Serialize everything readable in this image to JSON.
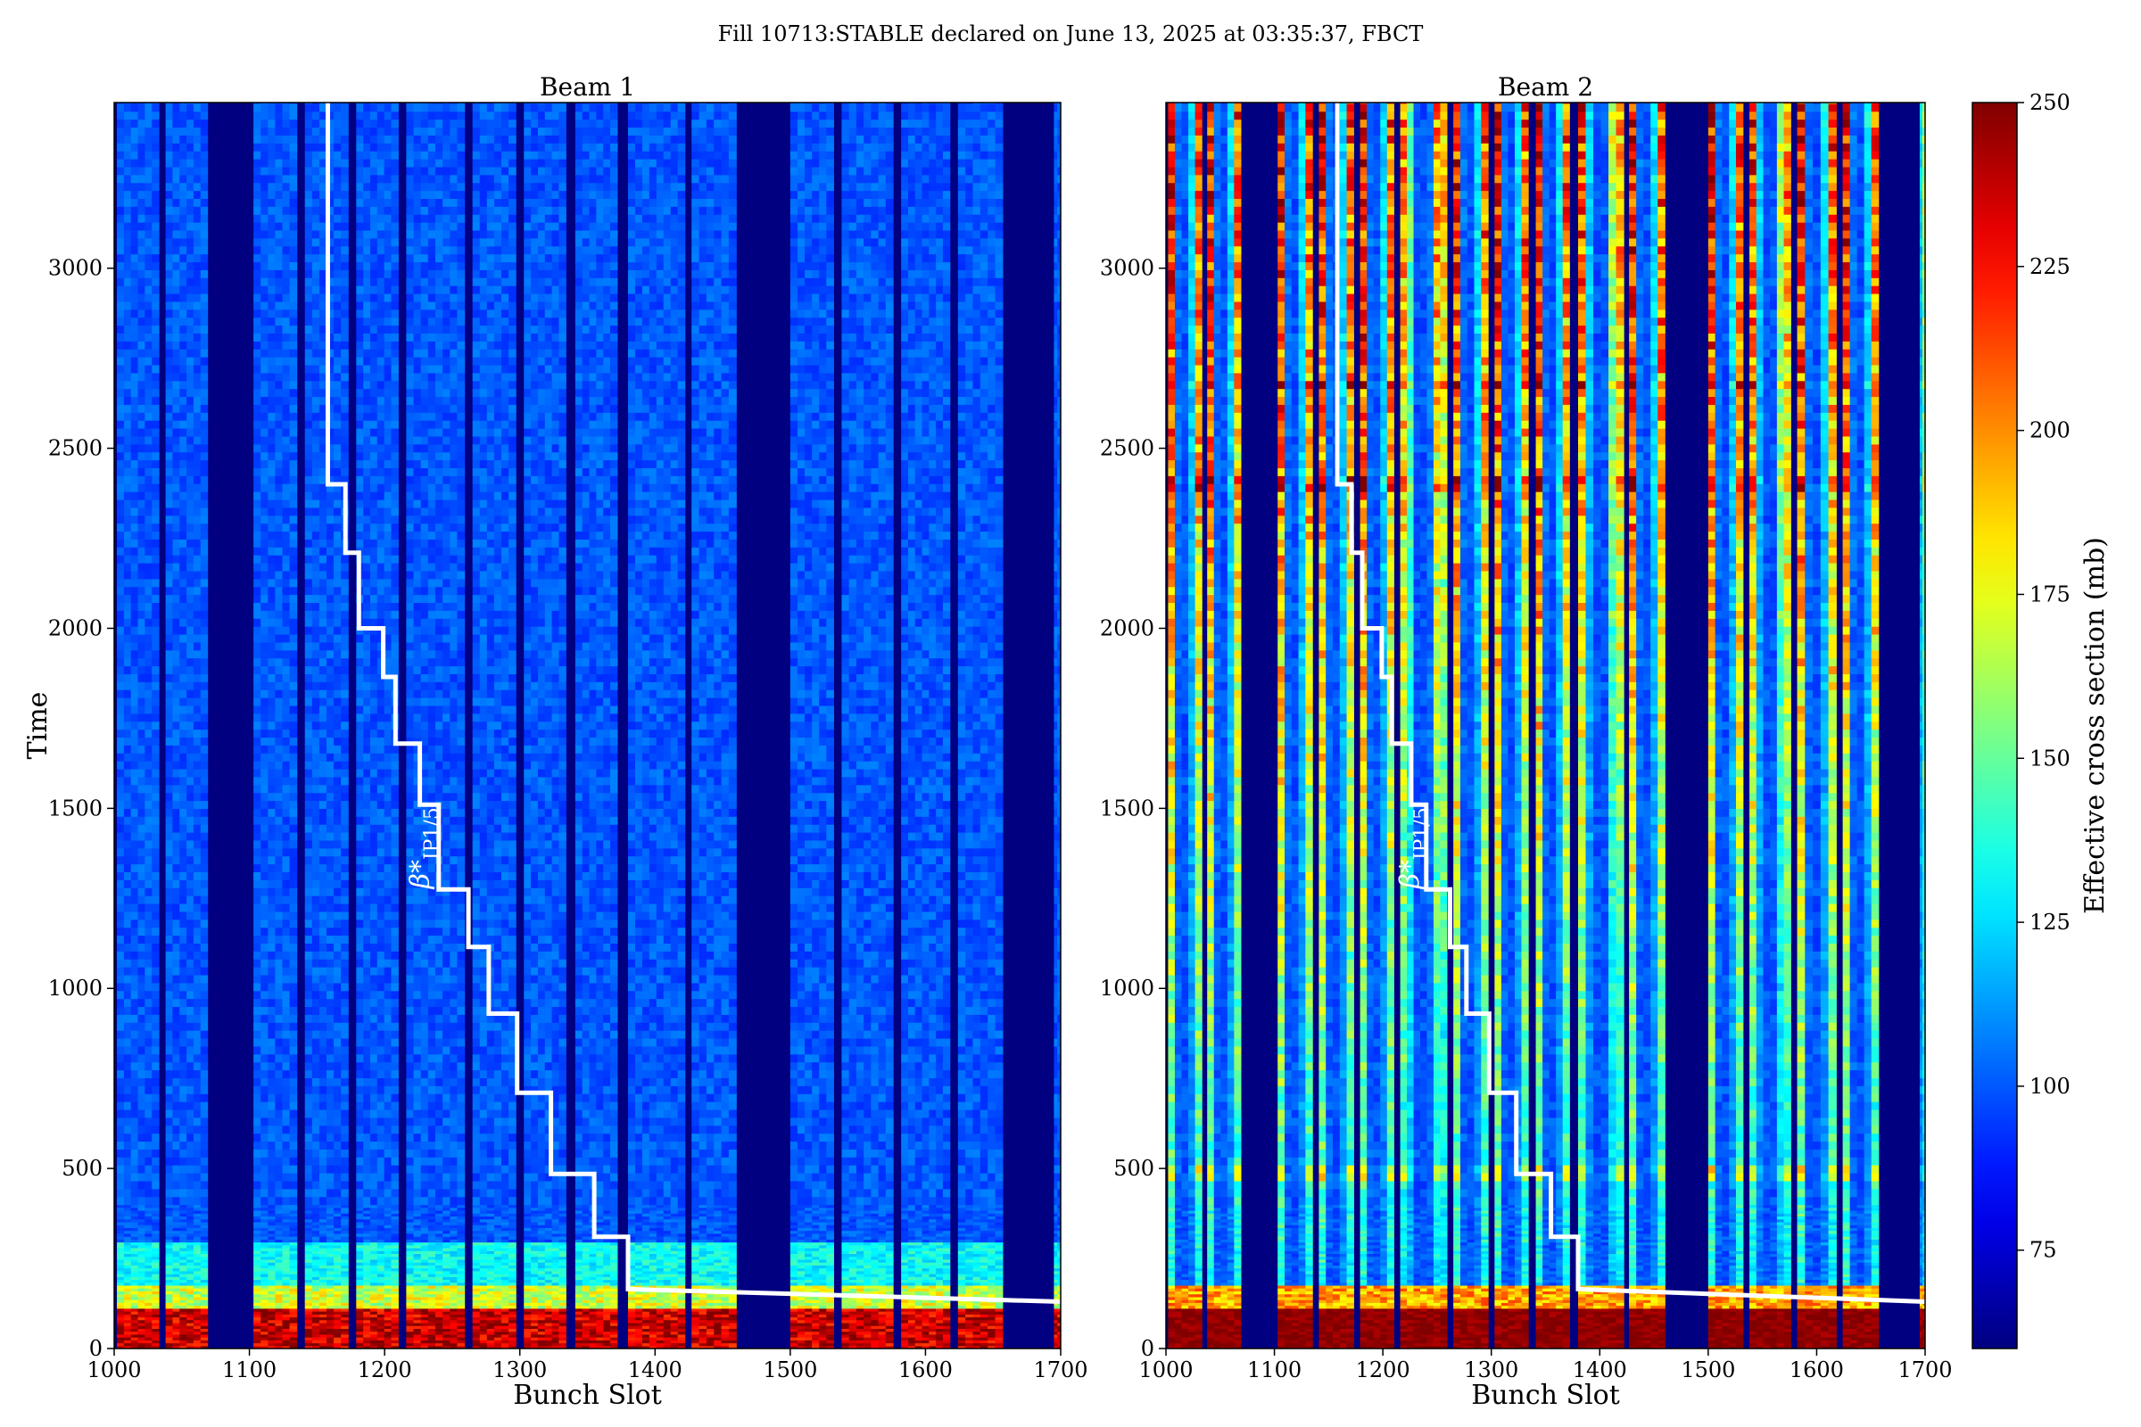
{
  "chart_data": {
    "type": "heatmap",
    "suptitle": "Fill 10713:STABLE declared on June 13, 2025 at 03:35:37, FBCT",
    "colorbar": {
      "label": "Effective cross section (mb)",
      "range": [
        60,
        250
      ],
      "ticks": [
        75,
        100,
        125,
        150,
        175,
        200,
        225,
        250
      ],
      "colormap": "jet"
    },
    "panels": [
      {
        "title": "Beam 1",
        "xlabel": "Bunch Slot",
        "ylabel": "Time",
        "xlim": [
          1000,
          1700
        ],
        "ylim": [
          0,
          3460
        ],
        "xticks": [
          1000,
          1100,
          1200,
          1300,
          1400,
          1500,
          1600,
          1700
        ],
        "yticks": [
          0,
          500,
          1000,
          1500,
          2000,
          2500,
          3000
        ],
        "intensity_profile": "uniform"
      },
      {
        "title": "Beam 2",
        "xlabel": "Bunch Slot",
        "ylabel": "",
        "xlim": [
          1000,
          1700
        ],
        "ylim": [
          0,
          3460
        ],
        "xticks": [
          1000,
          1100,
          1200,
          1300,
          1400,
          1500,
          1600,
          1700
        ],
        "yticks": [
          0,
          500,
          1000,
          1500,
          2000,
          2500,
          3000
        ],
        "intensity_profile": "train-edge-peaked"
      }
    ],
    "filled_trains": [
      [
        1002,
        1033
      ],
      [
        1038,
        1069
      ],
      [
        1103,
        1135
      ],
      [
        1141,
        1173
      ],
      [
        1179,
        1210
      ],
      [
        1216,
        1259
      ],
      [
        1265,
        1297
      ],
      [
        1303,
        1334
      ],
      [
        1341,
        1372
      ],
      [
        1380,
        1422
      ],
      [
        1427,
        1460
      ],
      [
        1500,
        1532
      ],
      [
        1538,
        1576
      ],
      [
        1582,
        1618
      ],
      [
        1624,
        1657
      ],
      [
        1695,
        1700
      ]
    ],
    "beta_star_curve": {
      "label_symbol": "β*",
      "label_subscript": "IP1/5",
      "points": [
        [
          1158,
          3460
        ],
        [
          1158,
          2400
        ],
        [
          1171,
          2400
        ],
        [
          1171,
          2210
        ],
        [
          1181,
          2210
        ],
        [
          1181,
          2000
        ],
        [
          1199,
          2000
        ],
        [
          1199,
          1865
        ],
        [
          1208,
          1865
        ],
        [
          1208,
          1680
        ],
        [
          1226,
          1680
        ],
        [
          1226,
          1510
        ],
        [
          1240,
          1510
        ],
        [
          1240,
          1275
        ],
        [
          1262,
          1275
        ],
        [
          1262,
          1115
        ],
        [
          1277,
          1115
        ],
        [
          1277,
          930
        ],
        [
          1298,
          930
        ],
        [
          1298,
          710
        ],
        [
          1323,
          710
        ],
        [
          1323,
          485
        ],
        [
          1355,
          485
        ],
        [
          1355,
          310
        ],
        [
          1380,
          310
        ],
        [
          1380,
          165
        ],
        [
          1700,
          130
        ]
      ]
    }
  }
}
